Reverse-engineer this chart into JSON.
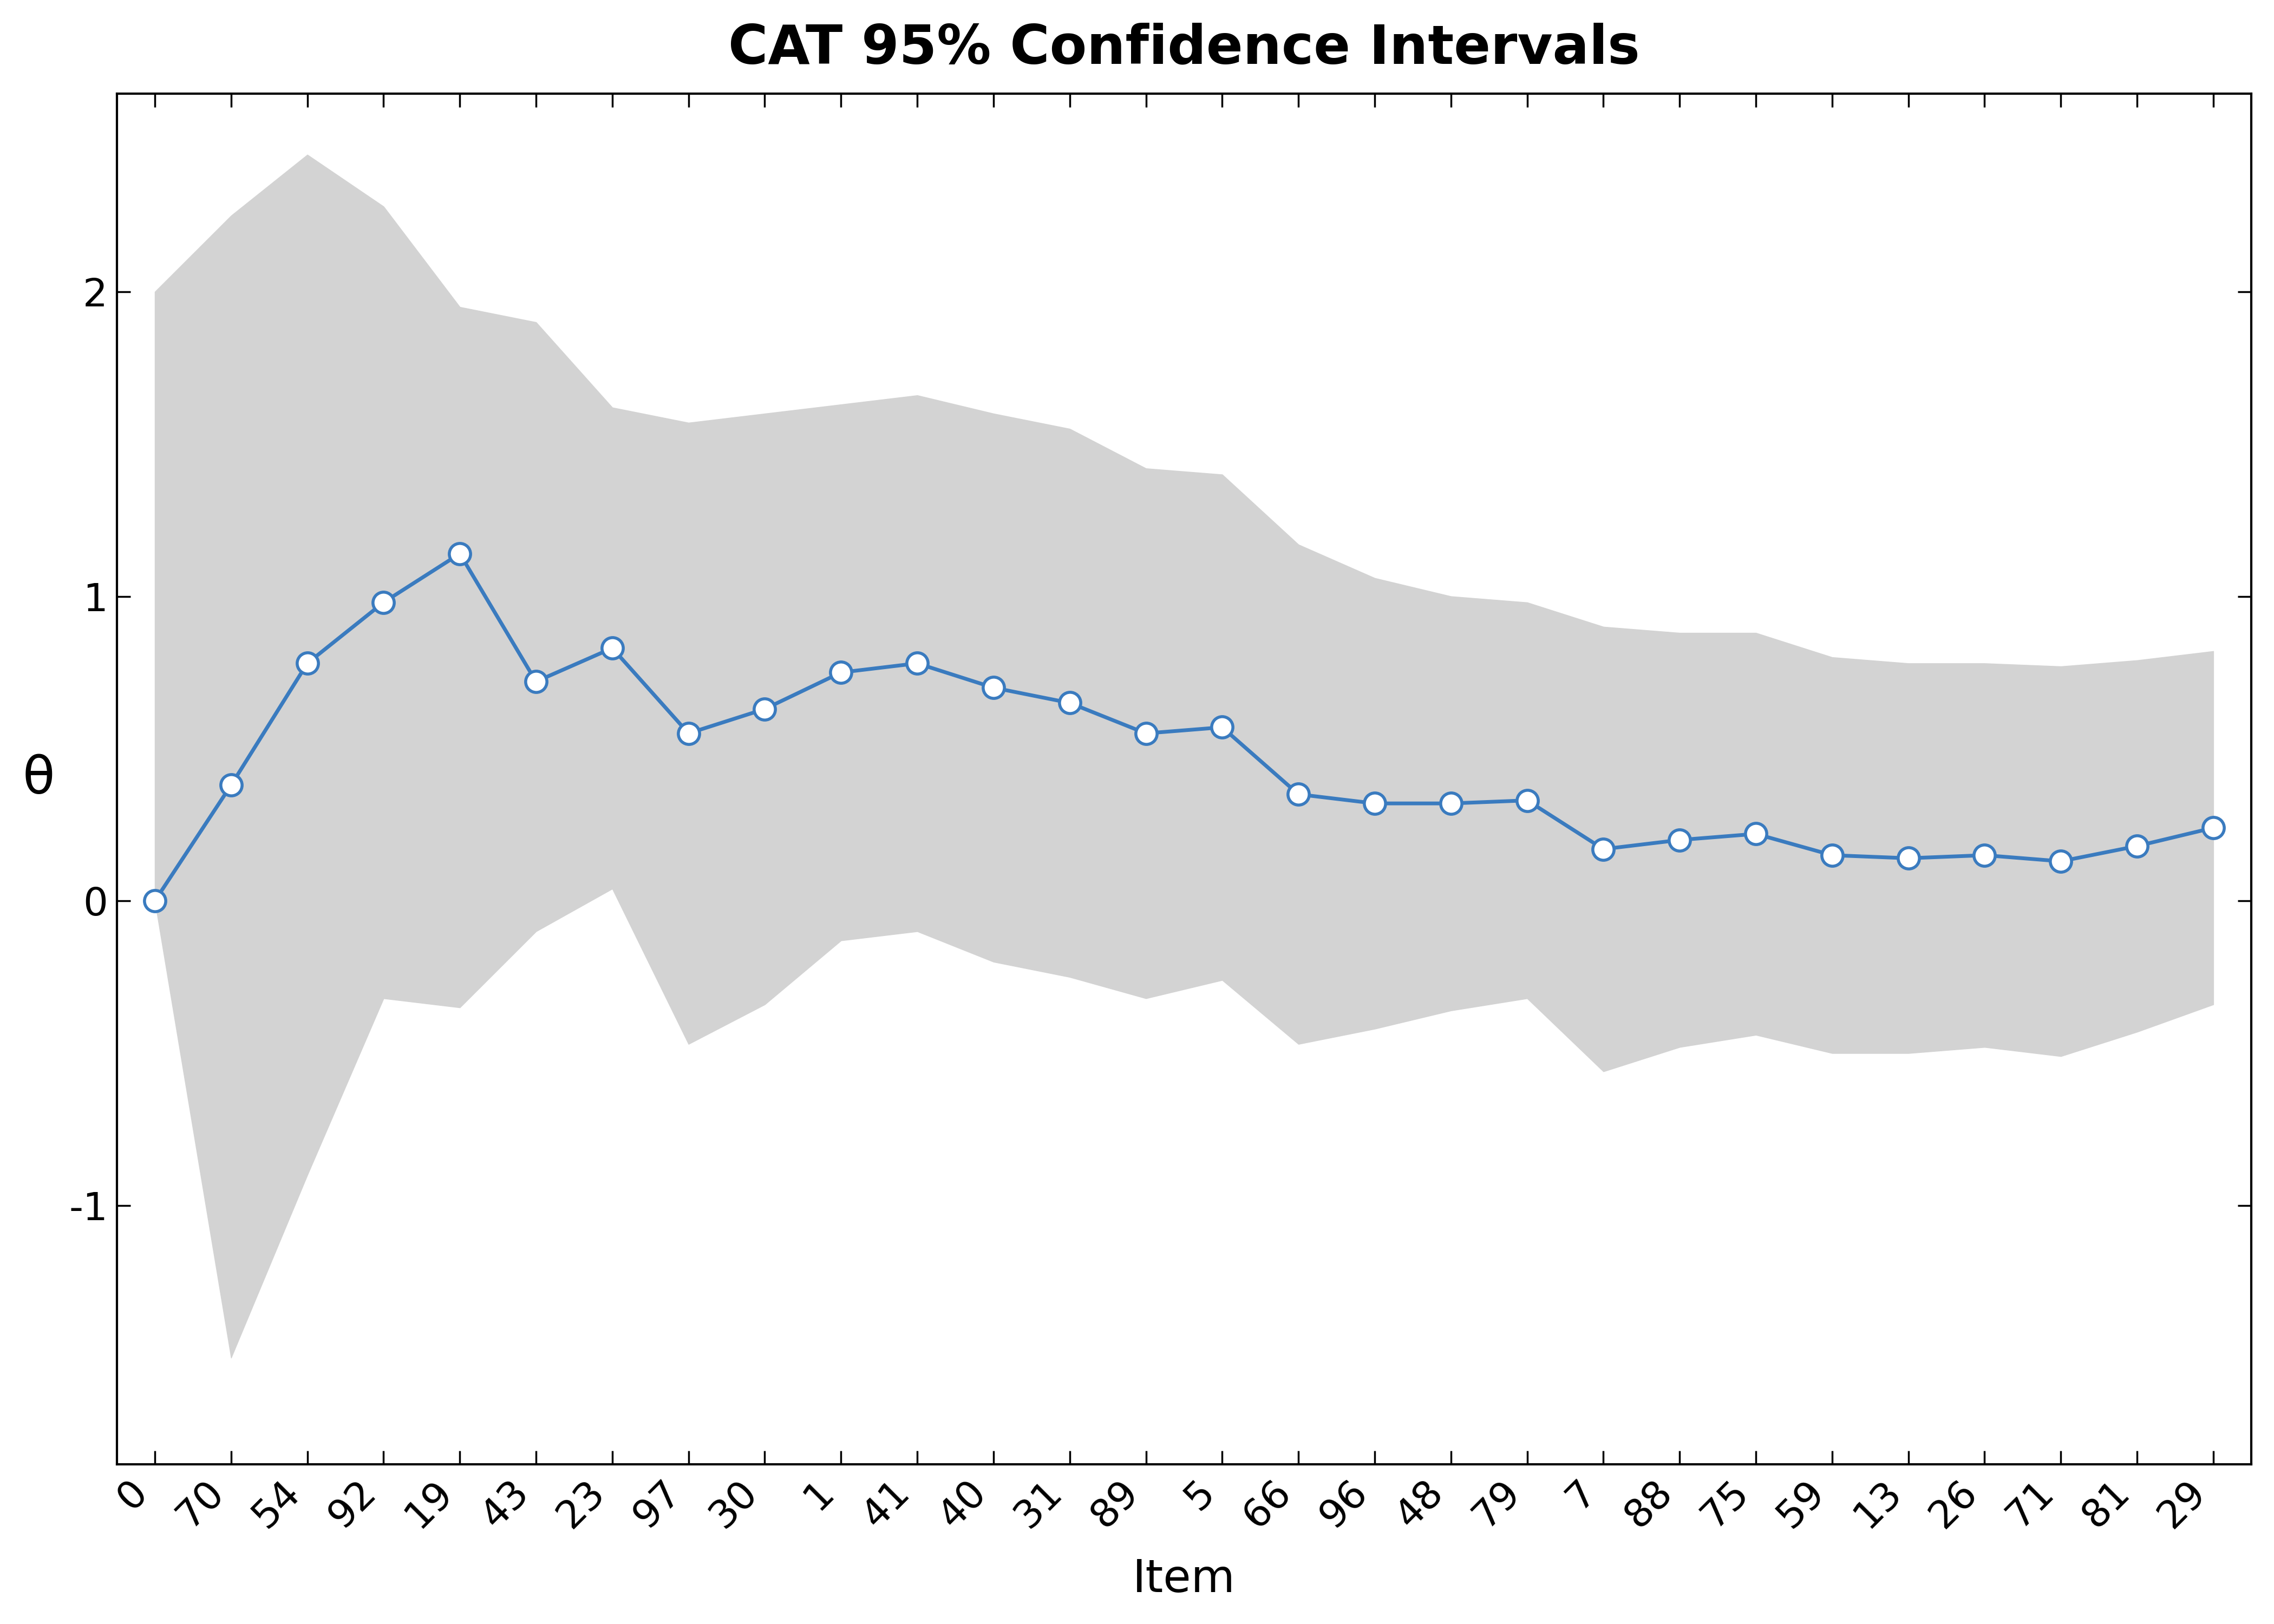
{
  "title": "CAT 95% Confidence Intervals",
  "xlabel": "Item",
  "ylabel": "θ",
  "x_labels": [
    "0",
    "70",
    "54",
    "92",
    "19",
    "43",
    "23",
    "97",
    "30",
    "1",
    "41",
    "40",
    "31",
    "89",
    "5",
    "66",
    "96",
    "48",
    "79",
    "7",
    "88",
    "75",
    "59",
    "13",
    "26",
    "71",
    "81",
    "29"
  ],
  "theta": [
    0.0,
    0.38,
    0.78,
    0.98,
    1.14,
    0.72,
    0.83,
    0.55,
    0.63,
    0.75,
    0.78,
    0.7,
    0.65,
    0.55,
    0.57,
    0.35,
    0.32,
    0.32,
    0.33,
    0.17,
    0.2,
    0.22,
    0.15,
    0.14,
    0.15,
    0.13,
    0.18,
    0.24
  ],
  "upper_ci": [
    2.0,
    2.25,
    2.45,
    2.28,
    1.95,
    1.9,
    1.62,
    1.57,
    1.6,
    1.63,
    1.66,
    1.6,
    1.55,
    1.42,
    1.4,
    1.17,
    1.06,
    1.0,
    0.98,
    0.9,
    0.88,
    0.88,
    0.8,
    0.78,
    0.78,
    0.77,
    0.79,
    0.82
  ],
  "lower_ci": [
    0.0,
    -1.5,
    -0.9,
    -0.32,
    -0.35,
    -0.1,
    0.04,
    -0.47,
    -0.34,
    -0.13,
    -0.1,
    -0.2,
    -0.25,
    -0.32,
    -0.26,
    -0.47,
    -0.42,
    -0.36,
    -0.32,
    -0.56,
    -0.48,
    -0.44,
    -0.5,
    -0.5,
    -0.48,
    -0.51,
    -0.43,
    -0.34
  ],
  "line_color": "#3a7bbf",
  "fill_color": "#d3d3d3",
  "background_color": "#ffffff",
  "ylim": [
    -1.85,
    2.65
  ],
  "yticks": [
    -1,
    0,
    1,
    2
  ],
  "title_fontsize": 72,
  "label_fontsize": 60,
  "tick_fontsize": 52
}
